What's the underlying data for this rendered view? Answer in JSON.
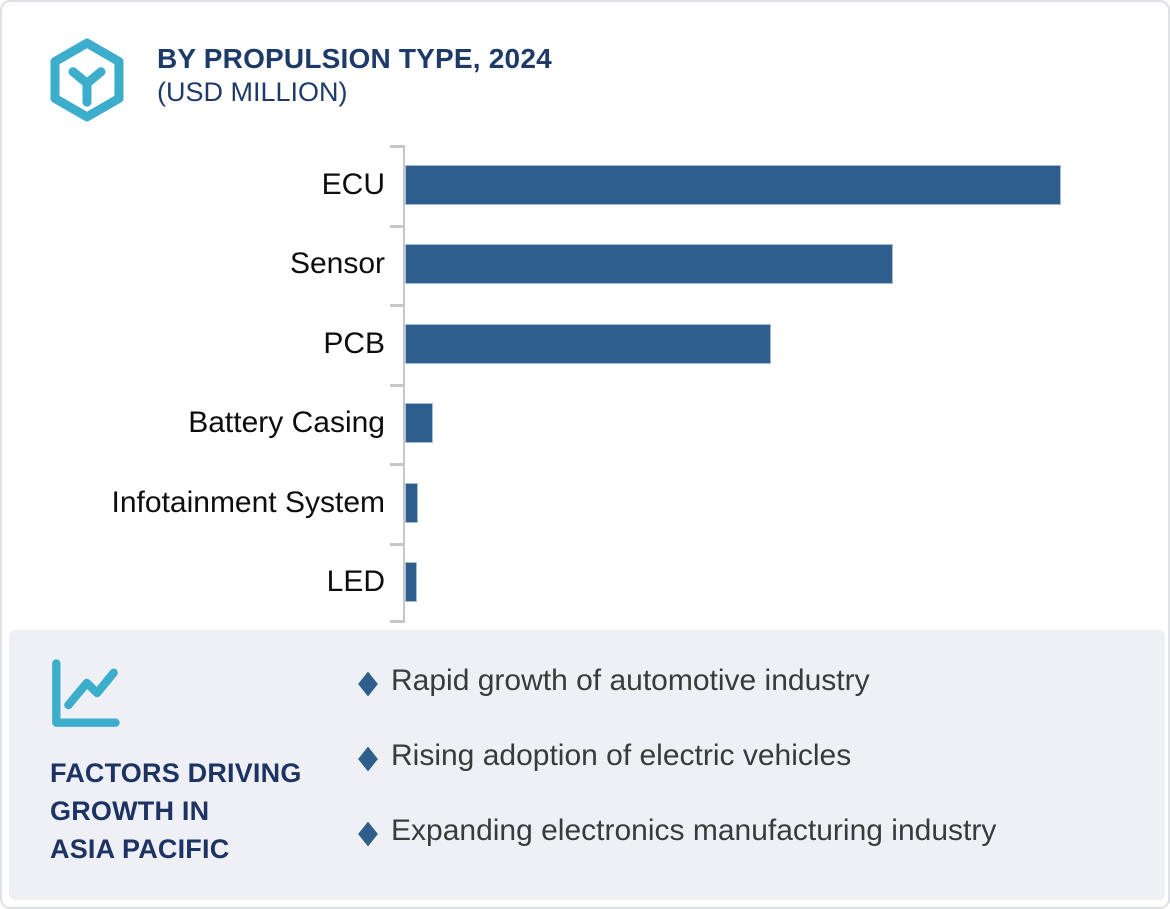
{
  "header": {
    "title_line1": "BY PROPULSION TYPE, 2024",
    "title_line2": "(USD MILLION)",
    "title_color": "#1E3A68",
    "logo_icon": "hexagon-y-logo",
    "accent_teal": "#3CADCA"
  },
  "chart_data": {
    "type": "bar",
    "orientation": "horizontal",
    "title": "BY PROPULSION TYPE, 2024 (USD MILLION)",
    "categories": [
      "ECU",
      "Sensor",
      "PCB",
      "Battery Casing",
      "Infotainment System",
      "LED"
    ],
    "values": [
      656,
      488,
      366,
      28,
      13,
      12
    ],
    "value_note": "relative bar lengths (numeric axis not labeled in image)",
    "bar_color": "#2E5E8C",
    "bar_edge_color": "#A6BFD6",
    "axis_color": "#C7C7C7",
    "label_color": "#0D0D0D",
    "grid": false,
    "legend": false
  },
  "factors": {
    "panel_color": "#EEF0F5",
    "chart_icon": "line-chart-icon",
    "heading": "FACTORS DRIVING\nGROWTH IN\nASIA PACIFIC",
    "heading_color": "#1C3363",
    "bullet_marker_glyph": "◆",
    "bullet_color": "#2E5E8C",
    "items": [
      "Rapid growth of automotive industry",
      "Rising adoption of electric vehicles",
      "Expanding electronics manufacturing industry"
    ]
  }
}
